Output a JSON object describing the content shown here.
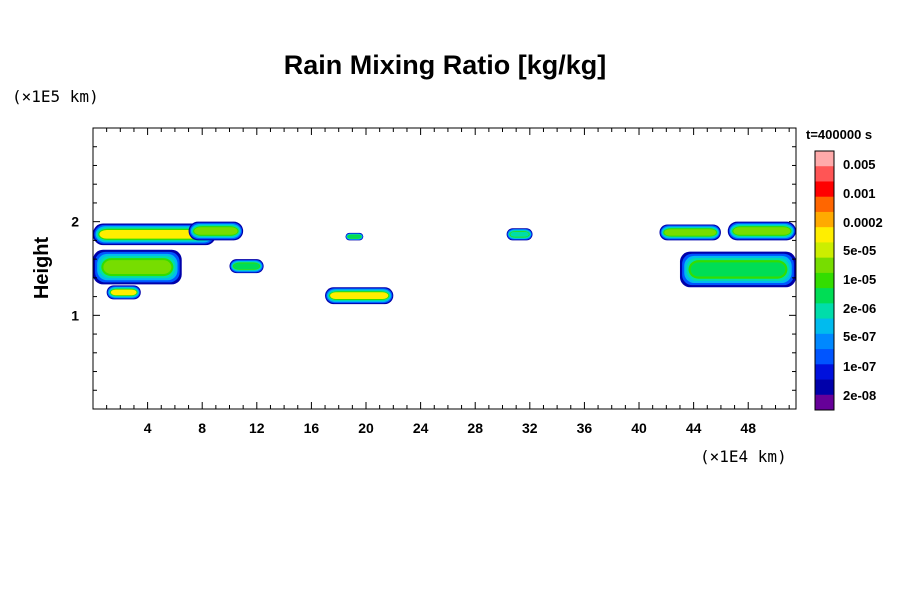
{
  "chart_data": {
    "type": "heatmap",
    "title": "Rain Mixing Ratio [kg/kg]",
    "ylabel": "Height",
    "y_unit": "(×1E5 km)",
    "x_unit": "(×1E4 km)",
    "time_label": "t=400000 s",
    "xlim": [
      0,
      51.5
    ],
    "ylim": [
      0,
      3
    ],
    "x_ticks": [
      "4",
      "8",
      "12",
      "16",
      "20",
      "24",
      "28",
      "32",
      "36",
      "40",
      "44",
      "48"
    ],
    "y_ticks": [
      "1",
      "2"
    ],
    "colorbar": {
      "labels": [
        "0.005",
        "0.001",
        "0.0002",
        "5e-05",
        "1e-05",
        "2e-06",
        "5e-07",
        "1e-07",
        "2e-08"
      ],
      "colors": [
        "#ffaaaa",
        "#ff5555",
        "#ff0000",
        "#ff6600",
        "#ffaa00",
        "#ffee00",
        "#ccee00",
        "#77dd00",
        "#33dd00",
        "#00dd55",
        "#00ddaa",
        "#00bbee",
        "#0088ff",
        "#0055ff",
        "#0011dd",
        "#0000aa",
        "#660099"
      ]
    },
    "regions": [
      {
        "x": [
          0,
          9
        ],
        "y": [
          1.75,
          1.98
        ],
        "level": "5e-05"
      },
      {
        "x": [
          7,
          11
        ],
        "y": [
          1.8,
          2.0
        ],
        "level": "1e-05"
      },
      {
        "x": [
          0,
          6.5
        ],
        "y": [
          1.33,
          1.7
        ],
        "level": "1e-05"
      },
      {
        "x": [
          1,
          3.5
        ],
        "y": [
          1.17,
          1.32
        ],
        "level": "5e-05"
      },
      {
        "x": [
          10,
          12.5
        ],
        "y": [
          1.45,
          1.6
        ],
        "level": "2e-06"
      },
      {
        "x": [
          17,
          22
        ],
        "y": [
          1.12,
          1.3
        ],
        "level": "5e-05"
      },
      {
        "x": [
          18.5,
          19.8
        ],
        "y": [
          1.8,
          1.88
        ],
        "level": "2e-06"
      },
      {
        "x": [
          30.3,
          32.2
        ],
        "y": [
          1.8,
          1.93
        ],
        "level": "5e-07"
      },
      {
        "x": [
          41.5,
          46
        ],
        "y": [
          1.8,
          1.97
        ],
        "level": "1e-05"
      },
      {
        "x": [
          46.5,
          51.5
        ],
        "y": [
          1.8,
          2.0
        ],
        "level": "1e-05"
      },
      {
        "x": [
          43,
          51.5
        ],
        "y": [
          1.3,
          1.68
        ],
        "level": "2e-06"
      }
    ]
  }
}
